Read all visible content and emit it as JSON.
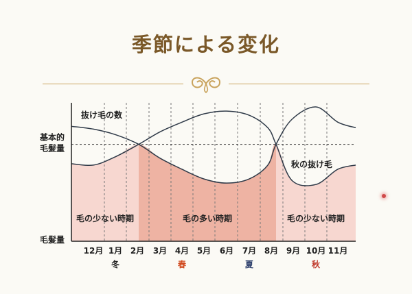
{
  "header": {
    "title": "季節による変化"
  },
  "chart_data": {
    "type": "area",
    "title": "",
    "xlabel": "",
    "ylabel": "",
    "y_labels": {
      "baseline": "基本的\n毛髪量",
      "bottom": "毛髪量"
    },
    "ylim": [
      0,
      100
    ],
    "categories": [
      "12月",
      "1月",
      "2月",
      "3月",
      "4月",
      "5月",
      "6月",
      "7月",
      "8月",
      "9月",
      "10月",
      "11月"
    ],
    "seasons": [
      {
        "label": "冬",
        "color": "#1a1a1a",
        "center_month": "1月"
      },
      {
        "label": "春",
        "color": "#d14a1f",
        "center_month": "4月"
      },
      {
        "label": "夏",
        "color": "#2c3e6b",
        "center_month": "7月"
      },
      {
        "label": "秋",
        "color": "#c0392b",
        "center_month": "10月"
      }
    ],
    "baseline_value": 70,
    "grid": "vertical dashed lines between months",
    "series": [
      {
        "name": "抜け毛の数",
        "x": [
          "11月境",
          "12月",
          "1月",
          "2月",
          "3月",
          "4月",
          "5月",
          "6月",
          "7月",
          "8月",
          "8.5",
          "9月",
          "10月",
          "11月",
          "end"
        ],
        "values": [
          83,
          81,
          77,
          70,
          60,
          52,
          45,
          42,
          45,
          55,
          70,
          88,
          97,
          86,
          82
        ]
      },
      {
        "name": "秋の抜け毛",
        "x": [
          "11月境",
          "12月",
          "1月",
          "2月",
          "3月",
          "4月",
          "5月",
          "6月",
          "7月",
          "8月",
          "8.5",
          "9月",
          "10月",
          "11月",
          "end"
        ],
        "values": [
          56,
          55,
          61,
          70,
          79,
          86,
          92,
          94,
          91,
          82,
          70,
          44,
          41,
          52,
          55
        ]
      }
    ],
    "periods": [
      {
        "label": "毛の少ない時期",
        "from": "11月境",
        "to": "2月",
        "fill": "#f7d7d0"
      },
      {
        "label": "毛の多い時期",
        "from": "2月",
        "to": "8.5",
        "fill": "#eeb3a3"
      },
      {
        "label": "毛の少ない時期",
        "from": "8.5",
        "to": "end",
        "fill": "#f7d7d0"
      }
    ],
    "annotations": [
      {
        "text": "抜け毛の数",
        "near": "12月"
      },
      {
        "text": "秋の抜け毛",
        "near": "10月"
      }
    ],
    "colors": {
      "line": "#2f3a48",
      "axis": "#222222",
      "dash": "#777777"
    }
  }
}
